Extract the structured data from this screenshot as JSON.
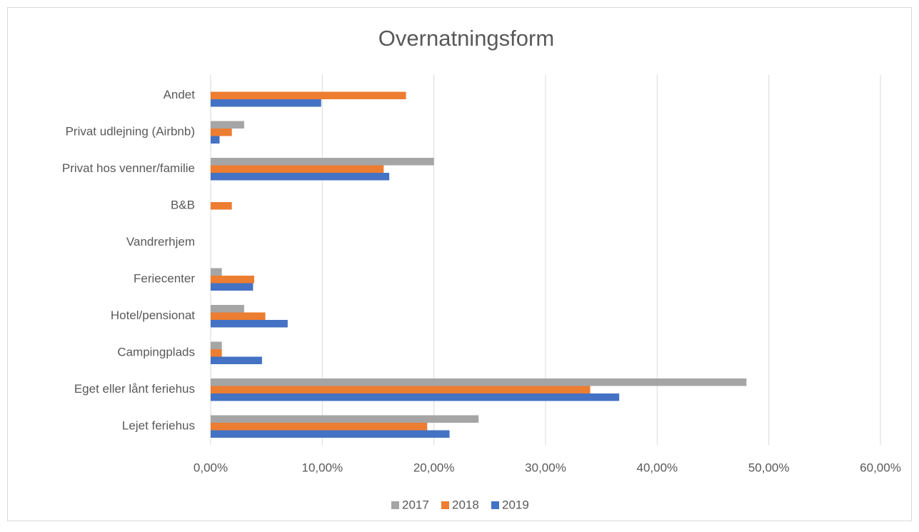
{
  "chart_data": {
    "type": "bar",
    "orientation": "horizontal",
    "title": "Overnatningsform",
    "categories": [
      "Andet",
      "Privat udlejning (Airbnb)",
      "Privat hos venner/familie",
      "B&B",
      "Vandrerhjem",
      "Feriecenter",
      "Hotel/pensionat",
      "Campingplads",
      "Eget eller lånt feriehus",
      "Lejet feriehus"
    ],
    "series": [
      {
        "name": "2017",
        "color": "#a5a5a5",
        "values": [
          0,
          3.0,
          20.0,
          0,
          0,
          1.0,
          3.0,
          1.0,
          48.0,
          24.0
        ]
      },
      {
        "name": "2018",
        "color": "#ed7d31",
        "values": [
          17.5,
          1.9,
          15.5,
          1.9,
          0,
          3.9,
          4.9,
          1.0,
          34.0,
          19.4
        ]
      },
      {
        "name": "2019",
        "color": "#4472c4",
        "values": [
          9.9,
          0.8,
          16.0,
          0,
          0,
          3.8,
          6.9,
          4.6,
          36.6,
          21.4
        ]
      }
    ],
    "xlim": [
      0,
      60
    ],
    "xticks": [
      {
        "value": 0,
        "label": "0,00%"
      },
      {
        "value": 10,
        "label": "10,00%"
      },
      {
        "value": 20,
        "label": "20,00%"
      },
      {
        "value": 30,
        "label": "30,00%"
      },
      {
        "value": 40,
        "label": "40,00%"
      },
      {
        "value": 50,
        "label": "50,00%"
      },
      {
        "value": 60,
        "label": "60,00%"
      }
    ],
    "grid": true,
    "legend": "bottom"
  }
}
